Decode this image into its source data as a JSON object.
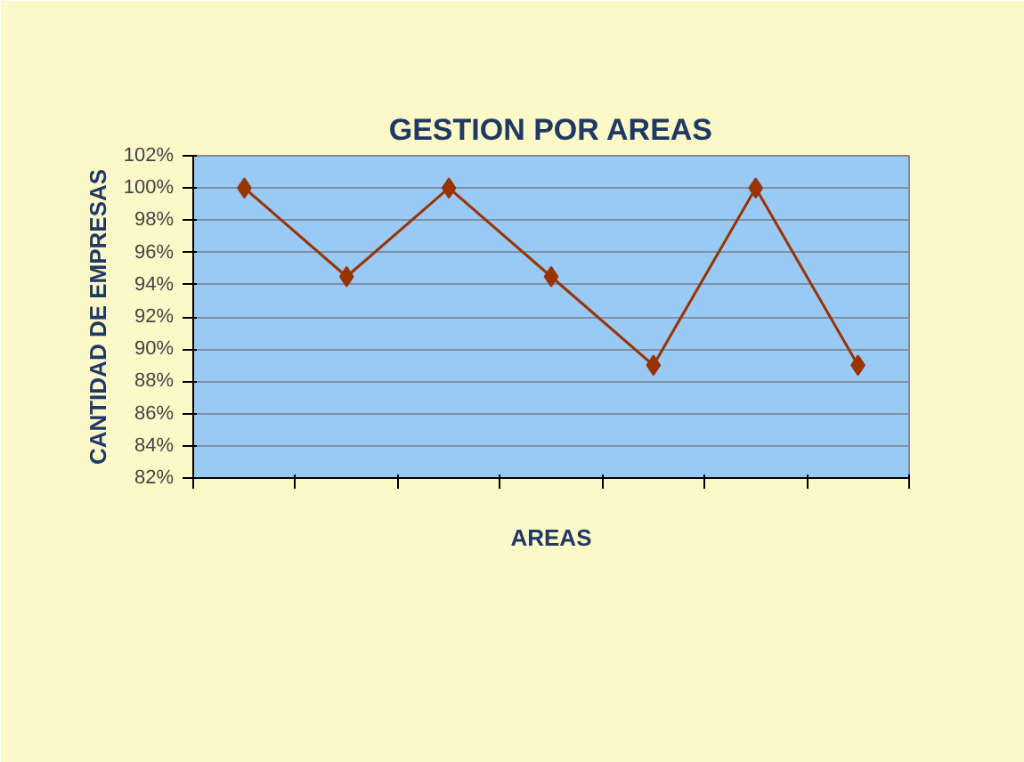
{
  "chart_data": {
    "type": "line",
    "title": "GESTION POR AREAS",
    "xlabel": "AREAS",
    "ylabel": "CANTIDAD DE EMPRESAS",
    "categories": [
      null,
      null,
      null,
      null,
      null,
      null,
      null
    ],
    "series": [
      {
        "color": "#993300",
        "values": [
          100,
          94.5,
          100,
          94.5,
          89,
          100,
          89
        ]
      }
    ],
    "ylim": [
      82,
      102
    ],
    "yticks": [
      {
        "value": 82,
        "label": "82%"
      },
      {
        "value": 84,
        "label": "84%"
      },
      {
        "value": 86,
        "label": "86%"
      },
      {
        "value": 88,
        "label": "88%"
      },
      {
        "value": 90,
        "label": "90%"
      },
      {
        "value": 92,
        "label": "92%"
      },
      {
        "value": 94,
        "label": "94%"
      },
      {
        "value": 96,
        "label": "96%"
      },
      {
        "value": 98,
        "label": "98%"
      },
      {
        "value": 100,
        "label": "100%"
      },
      {
        "value": 102,
        "label": "102%"
      }
    ],
    "grid": "y",
    "marker": "diamond",
    "line_style": "solid"
  }
}
